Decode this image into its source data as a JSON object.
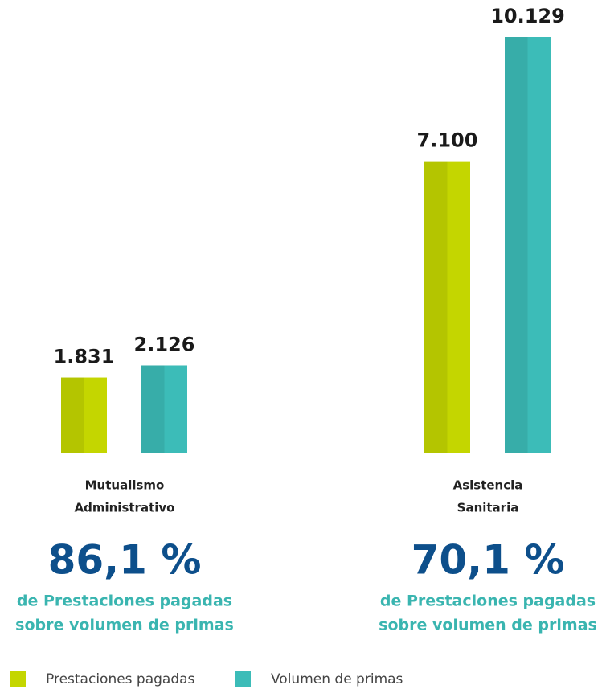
{
  "chart_data": {
    "type": "bar",
    "categories": [
      [
        "Mutualismo",
        "Administrativo"
      ],
      [
        "Asistencia",
        "Sanitaria"
      ]
    ],
    "series": [
      {
        "name": "Prestaciones pagadas",
        "color": "#c4d600",
        "values": [
          1831,
          7100
        ],
        "value_labels": [
          "1.831",
          "7.100"
        ]
      },
      {
        "name": "Volumen de primas",
        "color": "#3cbcb8",
        "values": [
          2126,
          10129
        ],
        "value_labels": [
          "2.126",
          "10.129"
        ]
      }
    ],
    "annotations": [
      {
        "label": "86,1 %",
        "lines": [
          "de Prestaciones pagadas",
          "sobre volumen de primas"
        ]
      },
      {
        "label": "70,1 %",
        "lines": [
          "de Prestaciones pagadas",
          "sobre volumen de primas"
        ]
      }
    ],
    "legend": "bottom-left"
  }
}
